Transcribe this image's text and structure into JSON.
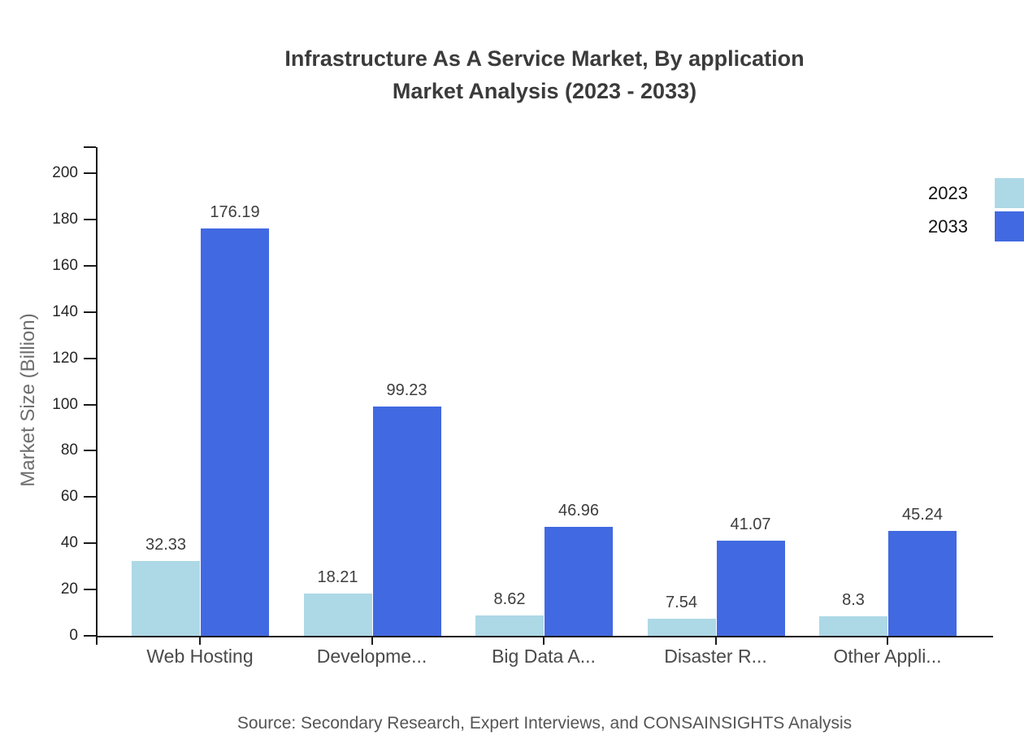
{
  "title": {
    "line1": "Infrastructure As A Service Market, By application",
    "line2": "Market Analysis (2023 - 2033)"
  },
  "source": "Source: Secondary Research, Expert Interviews, and CONSAINSIGHTS Analysis",
  "chart_data": {
    "type": "bar",
    "title": "Infrastructure As A Service Market, By application Market Analysis (2023 - 2033)",
    "categories": [
      "Web Hosting",
      "Developme...",
      "Big Data A...",
      "Disaster R...",
      "Other Appli..."
    ],
    "series": [
      {
        "name": "2023",
        "color": "#ADD8E6",
        "values": [
          32.33,
          18.21,
          8.62,
          7.54,
          8.3
        ]
      },
      {
        "name": "2033",
        "color": "#4169E1",
        "values": [
          176.19,
          99.23,
          46.96,
          41.07,
          45.24
        ]
      }
    ],
    "xlabel": "",
    "ylabel": "Market Size (Billion)",
    "ylim": [
      0,
      200
    ],
    "yticks": [
      0,
      20,
      40,
      60,
      80,
      100,
      120,
      140,
      160,
      180,
      200
    ],
    "grid": false,
    "legend_position": "top-right",
    "axis_color": "#1a1a1a"
  }
}
